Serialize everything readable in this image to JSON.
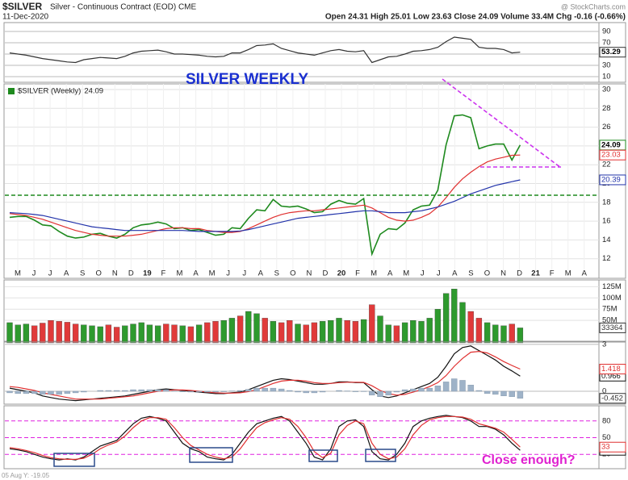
{
  "header": {
    "symbol": "$SILVER",
    "description": "Silver - Continuous Contract (EOD) CME",
    "source": "@ StockCharts.com",
    "date": "11-Dec-2020",
    "quote": "Open 24.31 High 25.01 Low 23.63 Close 24.09 Volume 33.4M Chg -0.16 (-0.66%)",
    "cursor": "05 Aug Y: -19.05"
  },
  "chart_data": [
    {
      "type": "line",
      "ylim": [
        0,
        100
      ],
      "yticks": [
        10,
        30,
        50,
        70,
        90
      ],
      "grid": true,
      "grid_color": "#bbbbbb",
      "series": [
        {
          "color": "#333333",
          "values": [
            52,
            50,
            48,
            45,
            42,
            40,
            38,
            36,
            35,
            40,
            42,
            44,
            43,
            42,
            46,
            52,
            55,
            56,
            57,
            54,
            50,
            50,
            49,
            48,
            46,
            45,
            46,
            52,
            52,
            58,
            65,
            66,
            68,
            60,
            56,
            52,
            50,
            48,
            52,
            56,
            58,
            55,
            54,
            56,
            35,
            40,
            45,
            46,
            50,
            55,
            56,
            58,
            62,
            72,
            80,
            78,
            76,
            62,
            60,
            60,
            58,
            52,
            53.29
          ]
        }
      ]
    },
    {
      "type": "line",
      "title": "SILVER WEEKLY",
      "ylim": [
        10,
        30.6
      ],
      "yticks": [
        12,
        14,
        16,
        18,
        20,
        22,
        24,
        26,
        28,
        30
      ],
      "grid": true,
      "grid_color": "#e2e2e2",
      "x_axis_labels": [
        "M",
        "J",
        "J",
        "A",
        "S",
        "O",
        "N",
        "D",
        "19",
        "F",
        "M",
        "A",
        "M",
        "J",
        "J",
        "A",
        "S",
        "O",
        "N",
        "D",
        "20",
        "F",
        "M",
        "A",
        "M",
        "J",
        "J",
        "A",
        "S",
        "O",
        "N",
        "D",
        "21",
        "F",
        "M",
        "A"
      ],
      "series": [
        {
          "name": "$SILVER (Weekly)",
          "color": "#1e8a1e",
          "values": [
            16.4,
            16.5,
            16.5,
            16.1,
            15.6,
            15.5,
            14.9,
            14.4,
            14.2,
            14.3,
            14.6,
            14.7,
            14.4,
            14.2,
            14.6,
            15.3,
            15.6,
            15.7,
            15.9,
            15.7,
            15.2,
            15.3,
            15.0,
            15.1,
            14.8,
            14.5,
            14.6,
            15.3,
            15.2,
            16.3,
            17.2,
            17.1,
            18.3,
            17.6,
            17.5,
            17.6,
            17.3,
            16.9,
            17.0,
            17.8,
            18.2,
            17.9,
            17.8,
            18.4,
            12.5,
            14.6,
            15.2,
            15.1,
            15.8,
            17.2,
            17.6,
            17.7,
            19.3,
            24.1,
            27.2,
            27.3,
            27.0,
            23.7,
            24.0,
            24.2,
            24.2,
            22.5,
            24.09
          ]
        },
        {
          "color": "#e03030",
          "values": [
            16.8,
            16.7,
            16.6,
            16.4,
            16.2,
            15.9,
            15.6,
            15.3,
            15.0,
            14.8,
            14.6,
            14.5,
            14.4,
            14.4,
            14.4,
            14.5,
            14.6,
            14.8,
            15.0,
            15.2,
            15.3,
            15.3,
            15.2,
            15.2,
            15.0,
            14.9,
            14.8,
            14.8,
            14.9,
            15.2,
            15.6,
            16.0,
            16.4,
            16.7,
            16.9,
            17.0,
            17.1,
            17.1,
            17.2,
            17.3,
            17.4,
            17.5,
            17.6,
            17.7,
            17.4,
            16.9,
            16.4,
            16.1,
            16.0,
            16.1,
            16.4,
            16.8,
            17.5,
            18.5,
            19.6,
            20.5,
            21.2,
            21.8,
            22.3,
            22.6,
            22.8,
            23.0,
            23.03
          ]
        },
        {
          "color": "#2233aa",
          "values": [
            16.9,
            16.85,
            16.8,
            16.7,
            16.6,
            16.4,
            16.2,
            16.0,
            15.8,
            15.6,
            15.4,
            15.3,
            15.2,
            15.1,
            15.0,
            15.0,
            15.0,
            15.0,
            15.0,
            15.0,
            15.0,
            15.0,
            14.95,
            14.9,
            14.9,
            14.9,
            14.9,
            14.9,
            14.95,
            15.1,
            15.3,
            15.5,
            15.7,
            15.9,
            16.1,
            16.3,
            16.4,
            16.5,
            16.6,
            16.7,
            16.8,
            16.9,
            17.0,
            17.1,
            17.1,
            17.0,
            16.9,
            16.9,
            16.9,
            17.0,
            17.1,
            17.3,
            17.5,
            17.8,
            18.1,
            18.5,
            18.9,
            19.2,
            19.5,
            19.8,
            20.0,
            20.2,
            20.39
          ]
        }
      ]
    },
    {
      "type": "bar",
      "ylim": [
        0,
        140
      ],
      "yticks": [
        {
          "value": 50,
          "label": "50M"
        },
        {
          "value": 75,
          "label": "75M"
        },
        {
          "value": 100,
          "label": "100M"
        },
        {
          "value": 125,
          "label": "125M"
        }
      ],
      "grid": true,
      "grid_color": "#e2e2e2",
      "up_color": "#2e9a2e",
      "down_color": "#e03a3a",
      "series": [
        {
          "values": [
            45,
            40,
            42,
            38,
            44,
            50,
            48,
            46,
            42,
            40,
            38,
            36,
            40,
            35,
            38,
            42,
            45,
            40,
            38,
            42,
            40,
            38,
            36,
            40,
            45,
            48,
            50,
            55,
            60,
            70,
            65,
            55,
            48,
            45,
            50,
            42,
            40,
            45,
            48,
            50,
            55,
            50,
            48,
            52,
            85,
            60,
            40,
            38,
            45,
            50,
            48,
            55,
            75,
            110,
            120,
            90,
            70,
            55,
            45,
            40,
            38,
            42,
            33.364
          ],
          "value_labels": [
            null,
            null,
            null,
            null,
            null,
            null,
            null,
            null,
            null,
            null,
            null,
            null,
            null,
            null,
            null,
            null,
            null,
            null,
            null,
            null,
            null,
            null,
            null,
            null,
            null,
            null,
            null,
            null,
            null,
            null,
            null,
            null,
            null,
            null,
            null,
            null,
            null,
            null,
            null,
            null,
            null,
            null,
            null,
            null,
            null,
            null,
            null,
            null,
            null,
            null,
            null,
            null,
            null,
            null,
            null,
            null,
            null,
            null,
            null,
            null,
            null,
            null,
            "33364"
          ]
        }
      ]
    },
    {
      "type": "macd",
      "ylim": [
        -0.8,
        3.2
      ],
      "yticks": [
        0,
        3
      ],
      "grid": true,
      "grid_color": "#bbbbbb",
      "series": [
        {
          "color": "#111111",
          "values": [
            0.2,
            0.1,
            0.0,
            -0.1,
            -0.3,
            -0.4,
            -0.5,
            -0.55,
            -0.6,
            -0.55,
            -0.5,
            -0.45,
            -0.4,
            -0.35,
            -0.3,
            -0.2,
            -0.1,
            0.0,
            0.1,
            0.15,
            0.1,
            0.05,
            0.0,
            -0.05,
            -0.1,
            -0.15,
            -0.15,
            -0.1,
            -0.05,
            0.1,
            0.3,
            0.5,
            0.7,
            0.8,
            0.75,
            0.65,
            0.55,
            0.45,
            0.45,
            0.5,
            0.6,
            0.6,
            0.55,
            0.55,
            0.1,
            -0.3,
            -0.4,
            -0.3,
            -0.1,
            0.1,
            0.3,
            0.5,
            0.9,
            1.6,
            2.4,
            2.8,
            2.9,
            2.6,
            2.3,
            2.0,
            1.6,
            1.3,
            0.966
          ]
        },
        {
          "color": "#e03030",
          "values": [
            0.3,
            0.25,
            0.15,
            0.05,
            -0.1,
            -0.2,
            -0.3,
            -0.4,
            -0.5,
            -0.5,
            -0.5,
            -0.5,
            -0.45,
            -0.4,
            -0.35,
            -0.3,
            -0.2,
            -0.1,
            0.0,
            0.05,
            0.08,
            0.08,
            0.05,
            0.0,
            -0.05,
            -0.1,
            -0.12,
            -0.12,
            -0.1,
            -0.02,
            0.1,
            0.3,
            0.5,
            0.65,
            0.7,
            0.7,
            0.65,
            0.55,
            0.5,
            0.5,
            0.55,
            0.58,
            0.58,
            0.57,
            0.35,
            0.05,
            -0.15,
            -0.25,
            -0.2,
            -0.05,
            0.1,
            0.3,
            0.55,
            1.0,
            1.6,
            2.1,
            2.5,
            2.55,
            2.45,
            2.2,
            1.9,
            1.65,
            1.418
          ]
        },
        {
          "color": "#9fb3c8",
          "kind": "histogram",
          "values": [
            -0.1,
            -0.15,
            -0.15,
            -0.15,
            -0.2,
            -0.2,
            -0.2,
            -0.15,
            -0.1,
            -0.05,
            0,
            0.05,
            0.05,
            0.05,
            0.05,
            0.1,
            0.1,
            0.1,
            0.1,
            0.1,
            0.02,
            -0.03,
            -0.05,
            -0.05,
            -0.05,
            -0.05,
            -0.03,
            0.02,
            0.05,
            0.12,
            0.2,
            0.2,
            0.2,
            0.15,
            0.05,
            -0.05,
            -0.1,
            -0.1,
            -0.05,
            0,
            0.05,
            0.02,
            -0.03,
            -0.02,
            -0.25,
            -0.35,
            -0.25,
            -0.05,
            0.1,
            0.15,
            0.2,
            0.2,
            0.35,
            0.6,
            0.8,
            0.7,
            0.4,
            0.05,
            -0.15,
            -0.2,
            -0.3,
            -0.35,
            -0.452
          ]
        }
      ]
    },
    {
      "type": "line",
      "annotation": "Close enough?",
      "ylim": [
        0,
        100
      ],
      "yticks": [
        20,
        50,
        80
      ],
      "grid": true,
      "grid_color": "#e020e0",
      "series": [
        {
          "color": "#111111",
          "values": [
            30,
            28,
            25,
            20,
            15,
            12,
            10,
            12,
            10,
            15,
            25,
            35,
            40,
            45,
            60,
            75,
            85,
            88,
            85,
            80,
            60,
            40,
            30,
            25,
            15,
            12,
            10,
            20,
            40,
            60,
            75,
            80,
            85,
            88,
            80,
            60,
            40,
            15,
            10,
            30,
            70,
            80,
            82,
            70,
            25,
            12,
            10,
            20,
            40,
            70,
            80,
            85,
            88,
            90,
            88,
            86,
            80,
            70,
            70,
            65,
            55,
            40,
            27.25
          ]
        },
        {
          "color": "#e03030",
          "values": [
            32,
            30,
            27,
            23,
            18,
            14,
            12,
            11,
            11,
            13,
            20,
            30,
            37,
            42,
            53,
            68,
            80,
            86,
            86,
            83,
            68,
            50,
            36,
            28,
            20,
            15,
            12,
            15,
            30,
            50,
            68,
            77,
            82,
            86,
            83,
            70,
            50,
            25,
            14,
            22,
            55,
            72,
            80,
            75,
            40,
            20,
            12,
            15,
            30,
            55,
            72,
            82,
            86,
            88,
            88,
            87,
            83,
            75,
            71,
            67,
            60,
            47,
            33
          ]
        }
      ]
    }
  ]
}
